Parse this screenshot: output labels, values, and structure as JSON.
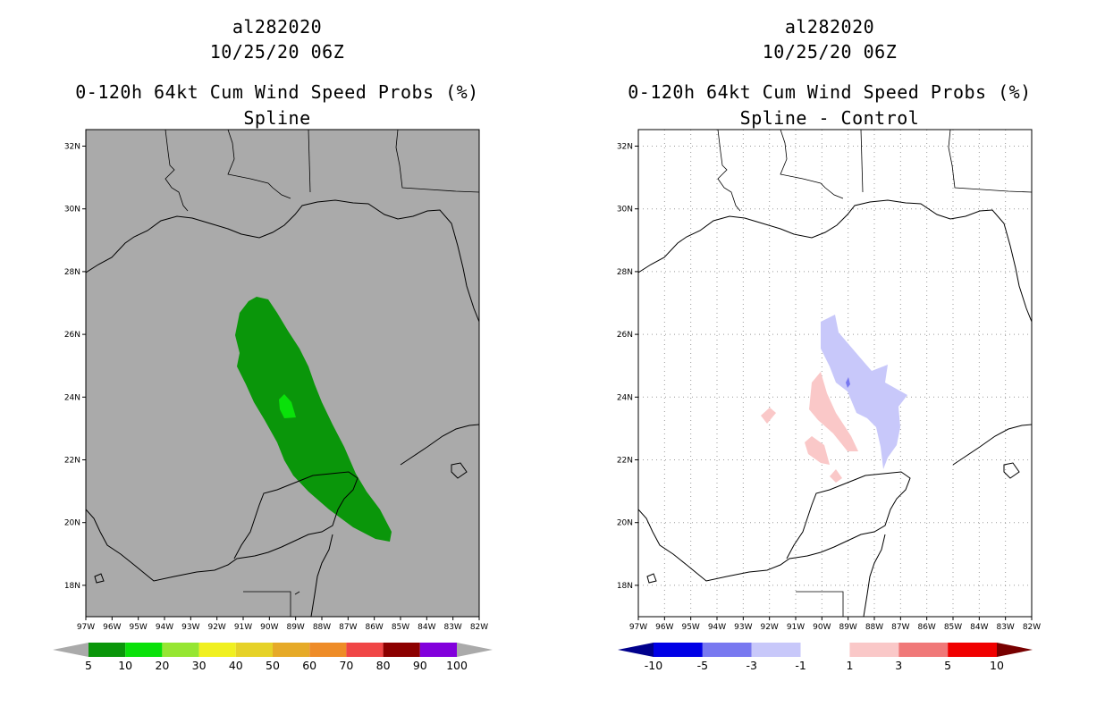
{
  "left_panel": {
    "storm": "al282020",
    "datetime": "10/25/20 06Z",
    "product": "0-120h 64kt Cum Wind Speed Probs (%)",
    "subtitle": "Spline",
    "colorbar": {
      "labels": [
        "5",
        "10",
        "20",
        "30",
        "40",
        "50",
        "60",
        "70",
        "80",
        "90",
        "100"
      ],
      "colors": [
        "#0a960a",
        "#0ae10a",
        "#96e632",
        "#f0f020",
        "#e6d228",
        "#e6aa28",
        "#ee8c28",
        "#f04646",
        "#8c0000",
        "#8200dc"
      ],
      "under_color": "#aaaaaa",
      "over_color": "#aaaaaa"
    }
  },
  "right_panel": {
    "storm": "al282020",
    "datetime": "10/25/20 06Z",
    "product": "0-120h 64kt Cum Wind Speed Probs (%)",
    "subtitle": "Spline - Control",
    "colorbar": {
      "labels": [
        "-10",
        "-5",
        "-3",
        "-1",
        "1",
        "3",
        "5",
        "10"
      ],
      "colors": [
        "#0000e6",
        "#7878f0",
        "#c8c8fa",
        "#ffffff",
        "#fac8c8",
        "#f07878",
        "#f00000"
      ],
      "under_color": "#00008c",
      "over_color": "#780000"
    }
  },
  "axes": {
    "lat_labels": [
      "32N",
      "30N",
      "28N",
      "26N",
      "24N",
      "22N",
      "20N",
      "18N"
    ],
    "lon_labels": [
      "97W",
      "96W",
      "95W",
      "94W",
      "93W",
      "92W",
      "91W",
      "90W",
      "89W",
      "88W",
      "87W",
      "86W",
      "85W",
      "84W",
      "83W",
      "82W"
    ]
  },
  "colors": {
    "land_bg_left": "#aaaaaa",
    "prob_5_10": "#0a960a",
    "prob_10_20": "#0ae10a",
    "diff_neg_small": "#c8c8fa",
    "diff_pos_small": "#fac8c8"
  }
}
